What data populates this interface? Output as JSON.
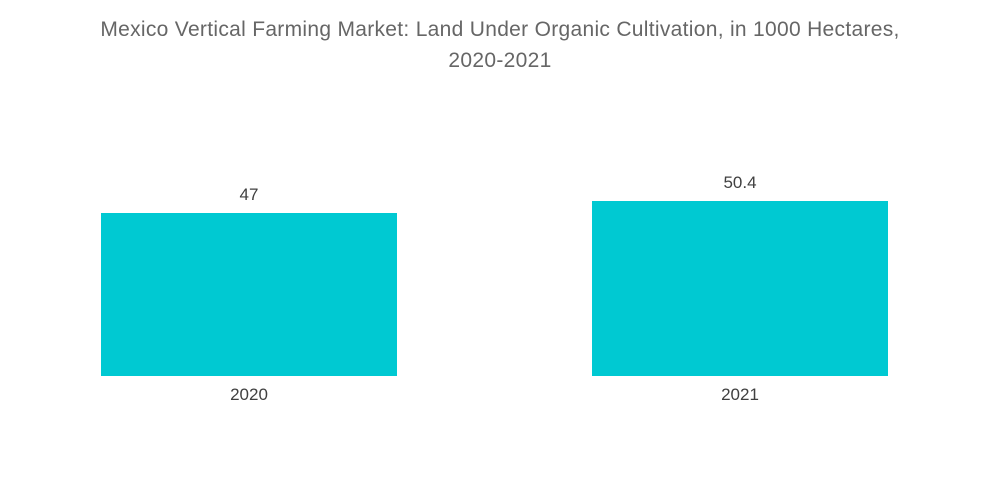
{
  "title_lines": [
    "Mexico Vertical Farming Market: Land Under Organic Cultivation, in 1000 Hectares,",
    "2020-2021"
  ],
  "colors": {
    "bar": "#00C9D2",
    "title_text": "#666666",
    "label_text": "#404040",
    "background": "#FFFFFF"
  },
  "chart_data": {
    "type": "bar",
    "title": "Mexico Vertical Farming Market: Land Under Organic Cultivation, in 1000 Hectares, 2020-2021",
    "categories": [
      "2020",
      "2021"
    ],
    "values": [
      47,
      50.4
    ],
    "value_labels": [
      "47",
      "50.4"
    ],
    "series": [
      {
        "name": "Land Under Organic Cultivation (1000 Hectares)",
        "values": [
          47,
          50.4
        ]
      }
    ],
    "xlabel": "",
    "ylabel": "",
    "ylim": [
      0,
      75
    ],
    "grid": false,
    "legend": false,
    "axes_visible": false,
    "bar_color": "#00C9D2"
  }
}
